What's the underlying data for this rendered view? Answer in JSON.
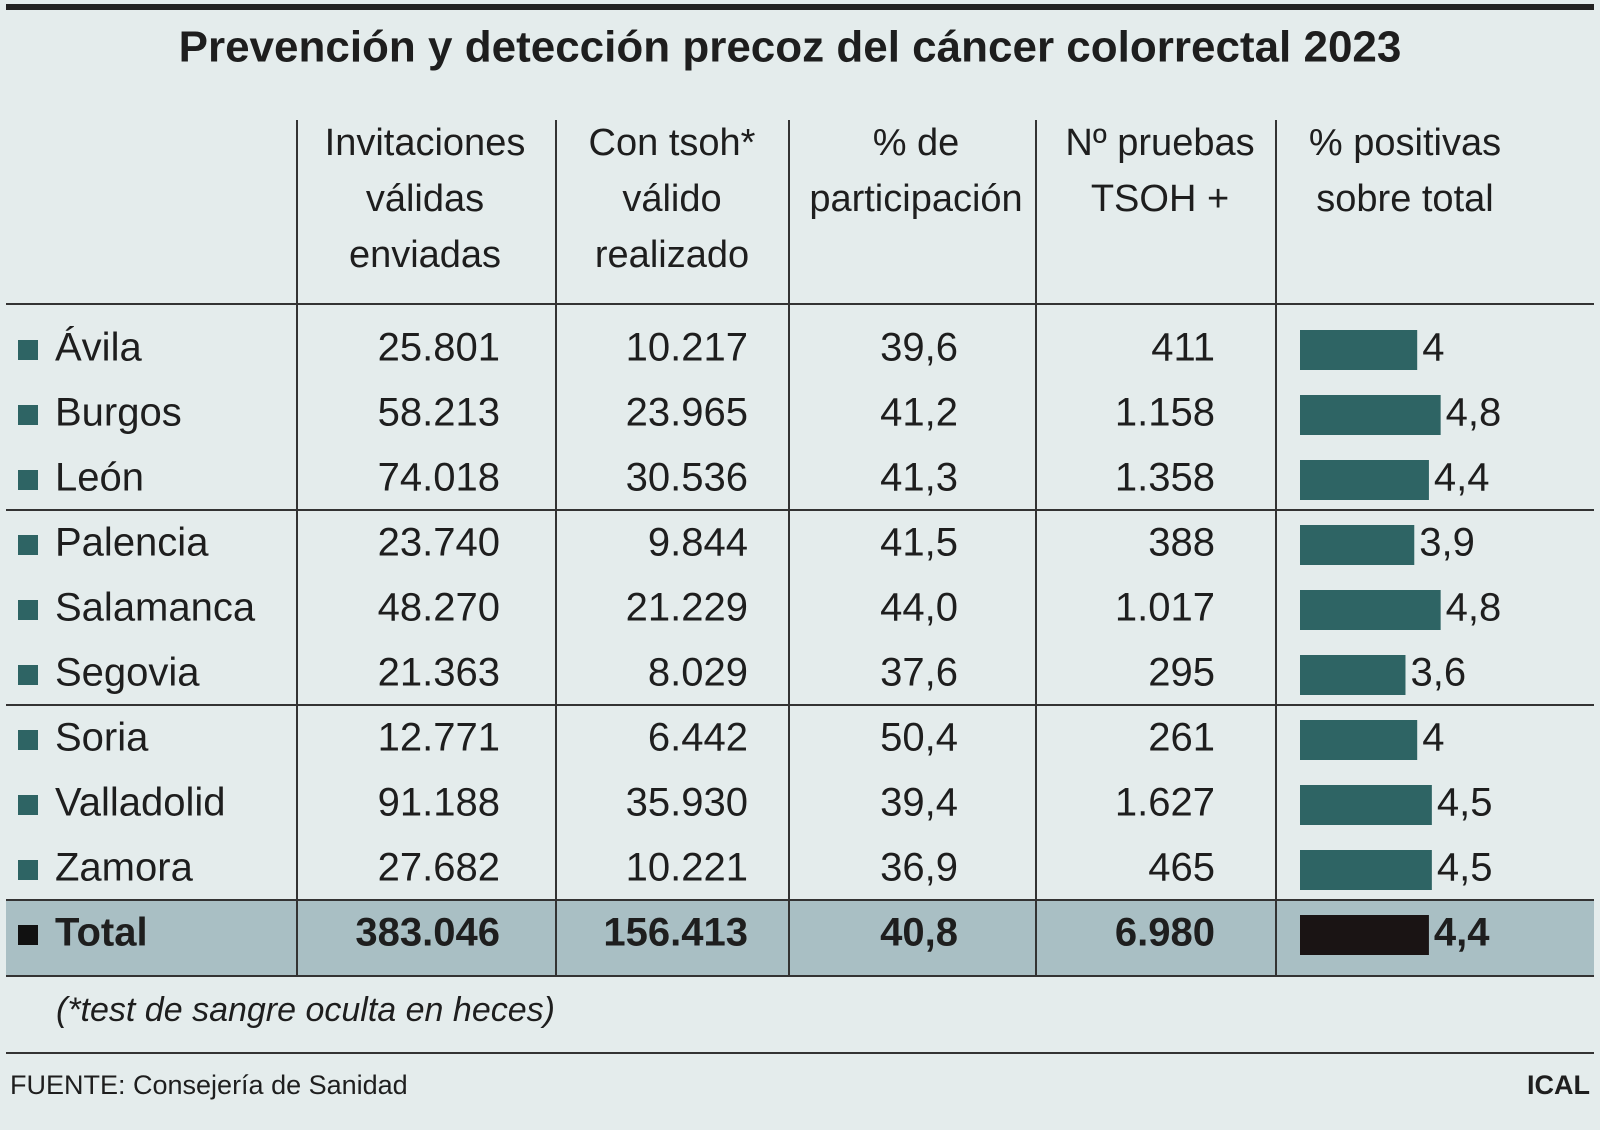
{
  "title": "Prevención y detección precoz del cáncer colorrectal 2023",
  "headers": [
    [
      "Invitaciones",
      "válidas",
      "enviadas"
    ],
    [
      "Con tsoh*",
      "válido",
      "realizado"
    ],
    [
      "% de",
      "participación"
    ],
    [
      "Nº pruebas",
      "TSOH +"
    ],
    [
      "% positivas",
      "sobre total"
    ]
  ],
  "rows": [
    {
      "name": "Ávila",
      "cells": [
        "25.801",
        "10.217",
        "39,6",
        "411"
      ]
    },
    {
      "name": "Burgos",
      "cells": [
        "58.213",
        "23.965",
        "41,2",
        "1.158"
      ]
    },
    {
      "name": "León",
      "cells": [
        "74.018",
        "30.536",
        "41,3",
        "1.358"
      ]
    },
    {
      "name": "Palencia",
      "cells": [
        "23.740",
        "9.844",
        "41,5",
        "388"
      ]
    },
    {
      "name": "Salamanca",
      "cells": [
        "48.270",
        "21.229",
        "44,0",
        "1.017"
      ]
    },
    {
      "name": "Segovia",
      "cells": [
        "21.363",
        "8.029",
        "37,6",
        "295"
      ]
    },
    {
      "name": "Soria",
      "cells": [
        "12.771",
        "6.442",
        "50,4",
        "261"
      ]
    },
    {
      "name": "Valladolid",
      "cells": [
        "91.188",
        "35.930",
        "39,4",
        "1.627"
      ]
    },
    {
      "name": "Zamora",
      "cells": [
        "27.682",
        "10.221",
        "36,9",
        "465"
      ]
    }
  ],
  "total": {
    "name": "Total",
    "cells": [
      "383.046",
      "156.413",
      "40,8",
      "6.980"
    ],
    "value": 4.4,
    "value_label": "4,4"
  },
  "positivas": {
    "values": [
      4,
      4.8,
      4.4,
      3.9,
      4.8,
      3.6,
      4,
      4.5,
      4.5
    ],
    "value_labels": [
      "4",
      "4,8",
      "4,4",
      "3,9",
      "4,8",
      "3,6",
      "4",
      "4,5",
      "4,5"
    ]
  },
  "footnote": "(*test de sangre oculta en heces)",
  "source": "FUENTE: Consejería de Sanidad",
  "credit": "ICAL"
}
